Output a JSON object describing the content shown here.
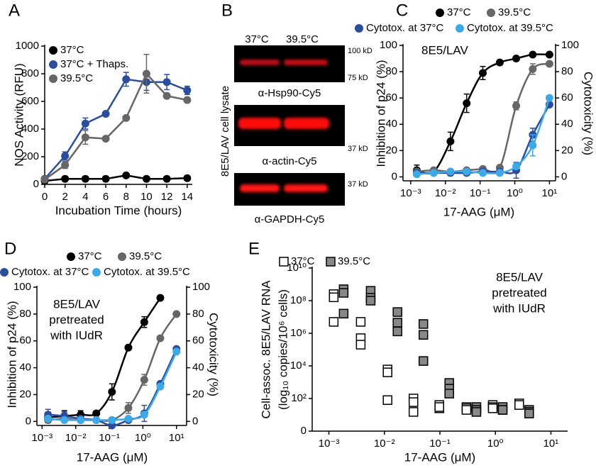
{
  "chart_data": [
    {
      "panel": "A",
      "type": "line",
      "x_label": "Incubation Time (hours)",
      "y_label": "NOS Activity (RFU)",
      "xlim": [
        0,
        14.5
      ],
      "ylim": [
        0,
        1000
      ],
      "xticks": [
        0,
        2,
        4,
        6,
        8,
        10,
        12,
        14
      ],
      "yticks": [
        0,
        200,
        400,
        600,
        800,
        1000
      ],
      "marker": "circle",
      "x": [
        0,
        2,
        4,
        6,
        8,
        10,
        12,
        14
      ],
      "series": [
        {
          "name": "37°C",
          "color": "#000000",
          "values": [
            25,
            40,
            40,
            40,
            65,
            40,
            40,
            45
          ]
        },
        {
          "name": "37°C + Thaps.",
          "color": "#2a4d9c",
          "values": [
            40,
            205,
            440,
            510,
            760,
            740,
            740,
            680
          ],
          "errors": [
            null,
            30,
            40,
            null,
            50,
            60,
            55,
            30
          ]
        },
        {
          "name": "39.5°C",
          "color": "#666666",
          "values": [
            35,
            140,
            340,
            330,
            480,
            800,
            640,
            610
          ],
          "errors": [
            null,
            25,
            50,
            null,
            null,
            140,
            null,
            null
          ]
        }
      ]
    },
    {
      "panel": "C",
      "type": "scatter",
      "fit_lines": true,
      "xscale": "log",
      "marker": "circle",
      "x_label": "17-AAG (μM)",
      "y_label": "Inhibition of p24 (%)",
      "y2_label": "Cytotoxicity (%)",
      "annotation": [
        "8E5/LAV"
      ],
      "xlim": [
        0.0006,
        15
      ],
      "ylim": [
        -3,
        100
      ],
      "y2lim": [
        -3,
        100
      ],
      "xticks": [
        {
          "value": 0.001,
          "label": "10⁻³"
        },
        {
          "value": 0.01,
          "label": "10⁻²"
        },
        {
          "value": 0.1,
          "label": "10⁻¹"
        },
        {
          "value": 1,
          "label": "10⁰"
        },
        {
          "value": 10,
          "label": "10¹"
        }
      ],
      "yticks": [
        0,
        20,
        40,
        60,
        80,
        100
      ],
      "y2ticks": [
        0,
        20,
        40,
        60,
        80,
        100
      ],
      "x": [
        0.0015,
        0.0046,
        0.014,
        0.041,
        0.12,
        0.37,
        1.1,
        3.3,
        10
      ],
      "series": [
        {
          "name": "37°C",
          "color": "#000000",
          "values": [
            5,
            4,
            27,
            56,
            79,
            87,
            90,
            93,
            93
          ],
          "errors": [
            4,
            null,
            7,
            7,
            5,
            null,
            null,
            null,
            null
          ]
        },
        {
          "name": "39.5°C",
          "color": "#666666",
          "values": [
            4,
            5,
            4,
            5,
            6,
            7,
            54,
            82,
            86
          ],
          "errors": [
            null,
            null,
            null,
            null,
            null,
            null,
            3,
            4,
            null
          ]
        },
        {
          "name": "Cytotox. at 37°C",
          "color": "#2a4d9c",
          "axis": "y2",
          "values": [
            3,
            3,
            3,
            3,
            4,
            4,
            5,
            32,
            55
          ],
          "errors": [
            2,
            null,
            2,
            null,
            null,
            null,
            6,
            5,
            null
          ]
        },
        {
          "name": "Cytotox. at 39.5°C",
          "color": "#3fa9e8",
          "axis": "y2",
          "values": [
            2,
            3,
            4,
            4,
            3,
            3,
            8,
            24,
            60
          ],
          "errors": [
            null,
            null,
            null,
            null,
            null,
            null,
            null,
            8,
            null
          ]
        }
      ]
    },
    {
      "panel": "D",
      "type": "scatter",
      "fit_lines": true,
      "xscale": "log",
      "marker": "circle",
      "x_label": "17-AAG (μM)",
      "y_label": "Inhibition of p24 (%)",
      "y2_label": "Cytotoxicity (%)",
      "annotation": [
        "8E5/LAV",
        "pretreated",
        "with IUdR"
      ],
      "xlim": [
        0.0007,
        20
      ],
      "ylim": [
        -3,
        100
      ],
      "y2lim": [
        -3,
        100
      ],
      "xticks": [
        {
          "value": 0.001,
          "label": "10⁻³"
        },
        {
          "value": 0.01,
          "label": "10⁻²"
        },
        {
          "value": 0.1,
          "label": "10⁻¹"
        },
        {
          "value": 1,
          "label": "10⁰"
        },
        {
          "value": 10,
          "label": "10¹"
        }
      ],
      "yticks": [
        0,
        20,
        40,
        60,
        80,
        100
      ],
      "y2ticks": [
        0,
        20,
        40,
        60,
        80,
        100
      ],
      "x": [
        0.0015,
        0.0046,
        0.014,
        0.041,
        0.12,
        0.37,
        1.1,
        3.3,
        10
      ],
      "series": [
        {
          "name": "37°C",
          "color": "#000000",
          "values": [
            3,
            4,
            5,
            6,
            22,
            55,
            74,
            92,
            null
          ],
          "errors": [
            4,
            4,
            3,
            null,
            6,
            null,
            4,
            null,
            null
          ]
        },
        {
          "name": "39.5°C",
          "color": "#666666",
          "values": [
            1,
            2,
            1,
            1,
            1,
            10,
            31,
            62,
            80
          ],
          "errors": [
            null,
            null,
            null,
            null,
            null,
            4,
            4,
            null,
            null
          ]
        },
        {
          "name": "Cytotox. at 37°C",
          "color": "#2a4d9c",
          "axis": "y2",
          "values": [
            5,
            4,
            2,
            1,
            -3,
            1,
            6,
            28,
            54
          ],
          "errors": [
            4,
            3,
            null,
            null,
            null,
            null,
            6,
            null,
            null
          ]
        },
        {
          "name": "Cytotox. at 39.5°C",
          "color": "#3fa9e8",
          "axis": "y2",
          "values": [
            2,
            1,
            1,
            1,
            1,
            2,
            5,
            26,
            52
          ]
        }
      ]
    },
    {
      "panel": "E",
      "type": "scatter",
      "xscale": "log",
      "yscale": "log",
      "marker": "square",
      "x_label": "17-AAG (μM)",
      "y_label": [
        "Cell-assoc. 8E5/LAV RNA",
        "(log₁₀ copies/10⁶ cells)"
      ],
      "annotation": [
        "8E5/LAV",
        "pretreated",
        "with IUdR"
      ],
      "xlim": [
        0.0005,
        20
      ],
      "ylim": [
        1,
        10000000000
      ],
      "xticks": [
        {
          "value": 0.001,
          "label": "10⁻³"
        },
        {
          "value": 0.01,
          "label": "10⁻²"
        },
        {
          "value": 0.1,
          "label": "10⁻¹"
        },
        {
          "value": 1,
          "label": "10⁰"
        },
        {
          "value": 10,
          "label": "10¹"
        }
      ],
      "yticks": [
        {
          "value": 1,
          "label": "0"
        },
        {
          "value": 100,
          "label": "10²"
        },
        {
          "value": 10000,
          "label": "10⁴"
        },
        {
          "value": 1000000,
          "label": "10⁶"
        },
        {
          "value": 100000000,
          "label": "10⁸"
        },
        {
          "value": 10000000000,
          "label": "10¹⁰"
        }
      ],
      "series": [
        {
          "name": "37°C",
          "color": "#ffffff",
          "x": [
            0.0015,
            0.0015,
            0.0015,
            0.0046,
            0.0046,
            0.0046,
            0.014,
            0.014,
            0.014,
            0.041,
            0.041,
            0.041,
            0.12,
            0.12,
            0.12,
            0.37,
            0.37,
            0.37,
            1.1,
            1.1,
            1.1,
            3.3,
            3.3
          ],
          "values": [
            250000000,
            160000000,
            5000000,
            5000000,
            500000,
            200000,
            6000,
            4000,
            80,
            100,
            60,
            15,
            40,
            25,
            30,
            30,
            25,
            20,
            40,
            30,
            25,
            50,
            40
          ]
        },
        {
          "name": "39.5°C",
          "color": "#888888",
          "x": [
            0.0015,
            0.0015,
            0.0015,
            0.0046,
            0.0046,
            0.0046,
            0.014,
            0.014,
            0.014,
            0.041,
            0.041,
            0.041,
            0.12,
            0.12,
            0.12,
            0.37,
            0.37,
            0.37,
            1.1,
            1.1,
            1.1,
            3.3,
            3.3,
            3.3
          ],
          "values": [
            500000000,
            300000000,
            16000000,
            400000000,
            150000000,
            100000000,
            20000000,
            4500000,
            1300000,
            3700000,
            800000,
            20000,
            900,
            400,
            200,
            30,
            20,
            15,
            30,
            20,
            20,
            20,
            15,
            12
          ]
        }
      ]
    }
  ],
  "blot": {
    "panel": "B",
    "columns": [
      "37°C",
      "39.5°C"
    ],
    "side_label": "8E5/LAV cell lysate",
    "blots": [
      {
        "label": "α-Hsp90-Cy5",
        "markers": [
          "100 kD",
          "75 kD"
        ]
      },
      {
        "label": "α-actin-Cy5",
        "markers": [
          "37 kD"
        ]
      },
      {
        "label": "α-GAPDH-Cy5",
        "markers": [
          "37 kD"
        ]
      }
    ]
  }
}
